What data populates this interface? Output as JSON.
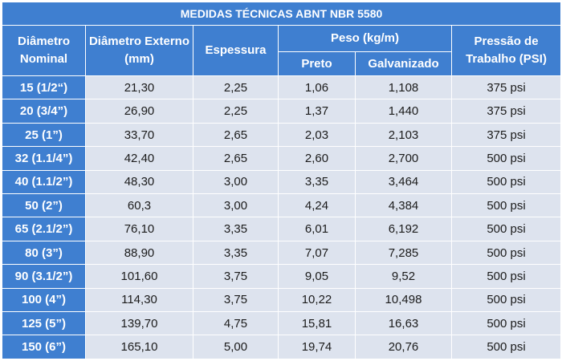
{
  "table": {
    "title": "MEDIDAS TÉCNICAS ABNT NBR 5580",
    "headers": {
      "diametro_nominal": "Diâmetro Nominal",
      "diametro_externo": "Diâmetro Externo (mm)",
      "espessura": "Espessura",
      "peso": "Peso (kg/m)",
      "preto": "Preto",
      "galvanizado": "Galvanizado",
      "pressao": "Pressão de Trabalho (PSI)"
    },
    "rows": [
      {
        "nominal": "15 (1/2“)",
        "externo": "21,30",
        "espessura": "2,25",
        "preto": "1,06",
        "galvanizado": "1,108",
        "pressao": "375 psi"
      },
      {
        "nominal": "20 (3/4”)",
        "externo": "26,90",
        "espessura": "2,25",
        "preto": "1,37",
        "galvanizado": "1,440",
        "pressao": "375 psi"
      },
      {
        "nominal": "25 (1”)",
        "externo": "33,70",
        "espessura": "2,65",
        "preto": "2,03",
        "galvanizado": "2,103",
        "pressao": "375 psi"
      },
      {
        "nominal": "32 (1.1/4”)",
        "externo": "42,40",
        "espessura": "2,65",
        "preto": "2,60",
        "galvanizado": "2,700",
        "pressao": "500 psi"
      },
      {
        "nominal": "40 (1.1/2”)",
        "externo": "48,30",
        "espessura": "3,00",
        "preto": "3,35",
        "galvanizado": "3,464",
        "pressao": "500 psi"
      },
      {
        "nominal": "50 (2”)",
        "externo": "60,3",
        "espessura": "3,00",
        "preto": "4,24",
        "galvanizado": "4,384",
        "pressao": "500 psi"
      },
      {
        "nominal": "65 (2.1/2”)",
        "externo": "76,10",
        "espessura": "3,35",
        "preto": "6,01",
        "galvanizado": "6,192",
        "pressao": "500 psi"
      },
      {
        "nominal": "80 (3”)",
        "externo": "88,90",
        "espessura": "3,35",
        "preto": "7,07",
        "galvanizado": "7,285",
        "pressao": "500 psi"
      },
      {
        "nominal": "90 (3.1/2”)",
        "externo": "101,60",
        "espessura": "3,75",
        "preto": "9,05",
        "galvanizado": "9,52",
        "pressao": "500 psi"
      },
      {
        "nominal": "100 (4”)",
        "externo": "114,30",
        "espessura": "3,75",
        "preto": "10,22",
        "galvanizado": "10,498",
        "pressao": "500 psi"
      },
      {
        "nominal": "125 (5”)",
        "externo": "139,70",
        "espessura": "4,75",
        "preto": "15,81",
        "galvanizado": "16,63",
        "pressao": "500 psi"
      },
      {
        "nominal": "150 (6”)",
        "externo": "165,10",
        "espessura": "5,00",
        "preto": "19,74",
        "galvanizado": "20,76",
        "pressao": "500 psi"
      }
    ]
  },
  "colors": {
    "header_bg": "#3f7fd0",
    "cell_bg": "#dde3ee",
    "header_text": "#ffffff",
    "cell_text": "#1b1b1b"
  }
}
